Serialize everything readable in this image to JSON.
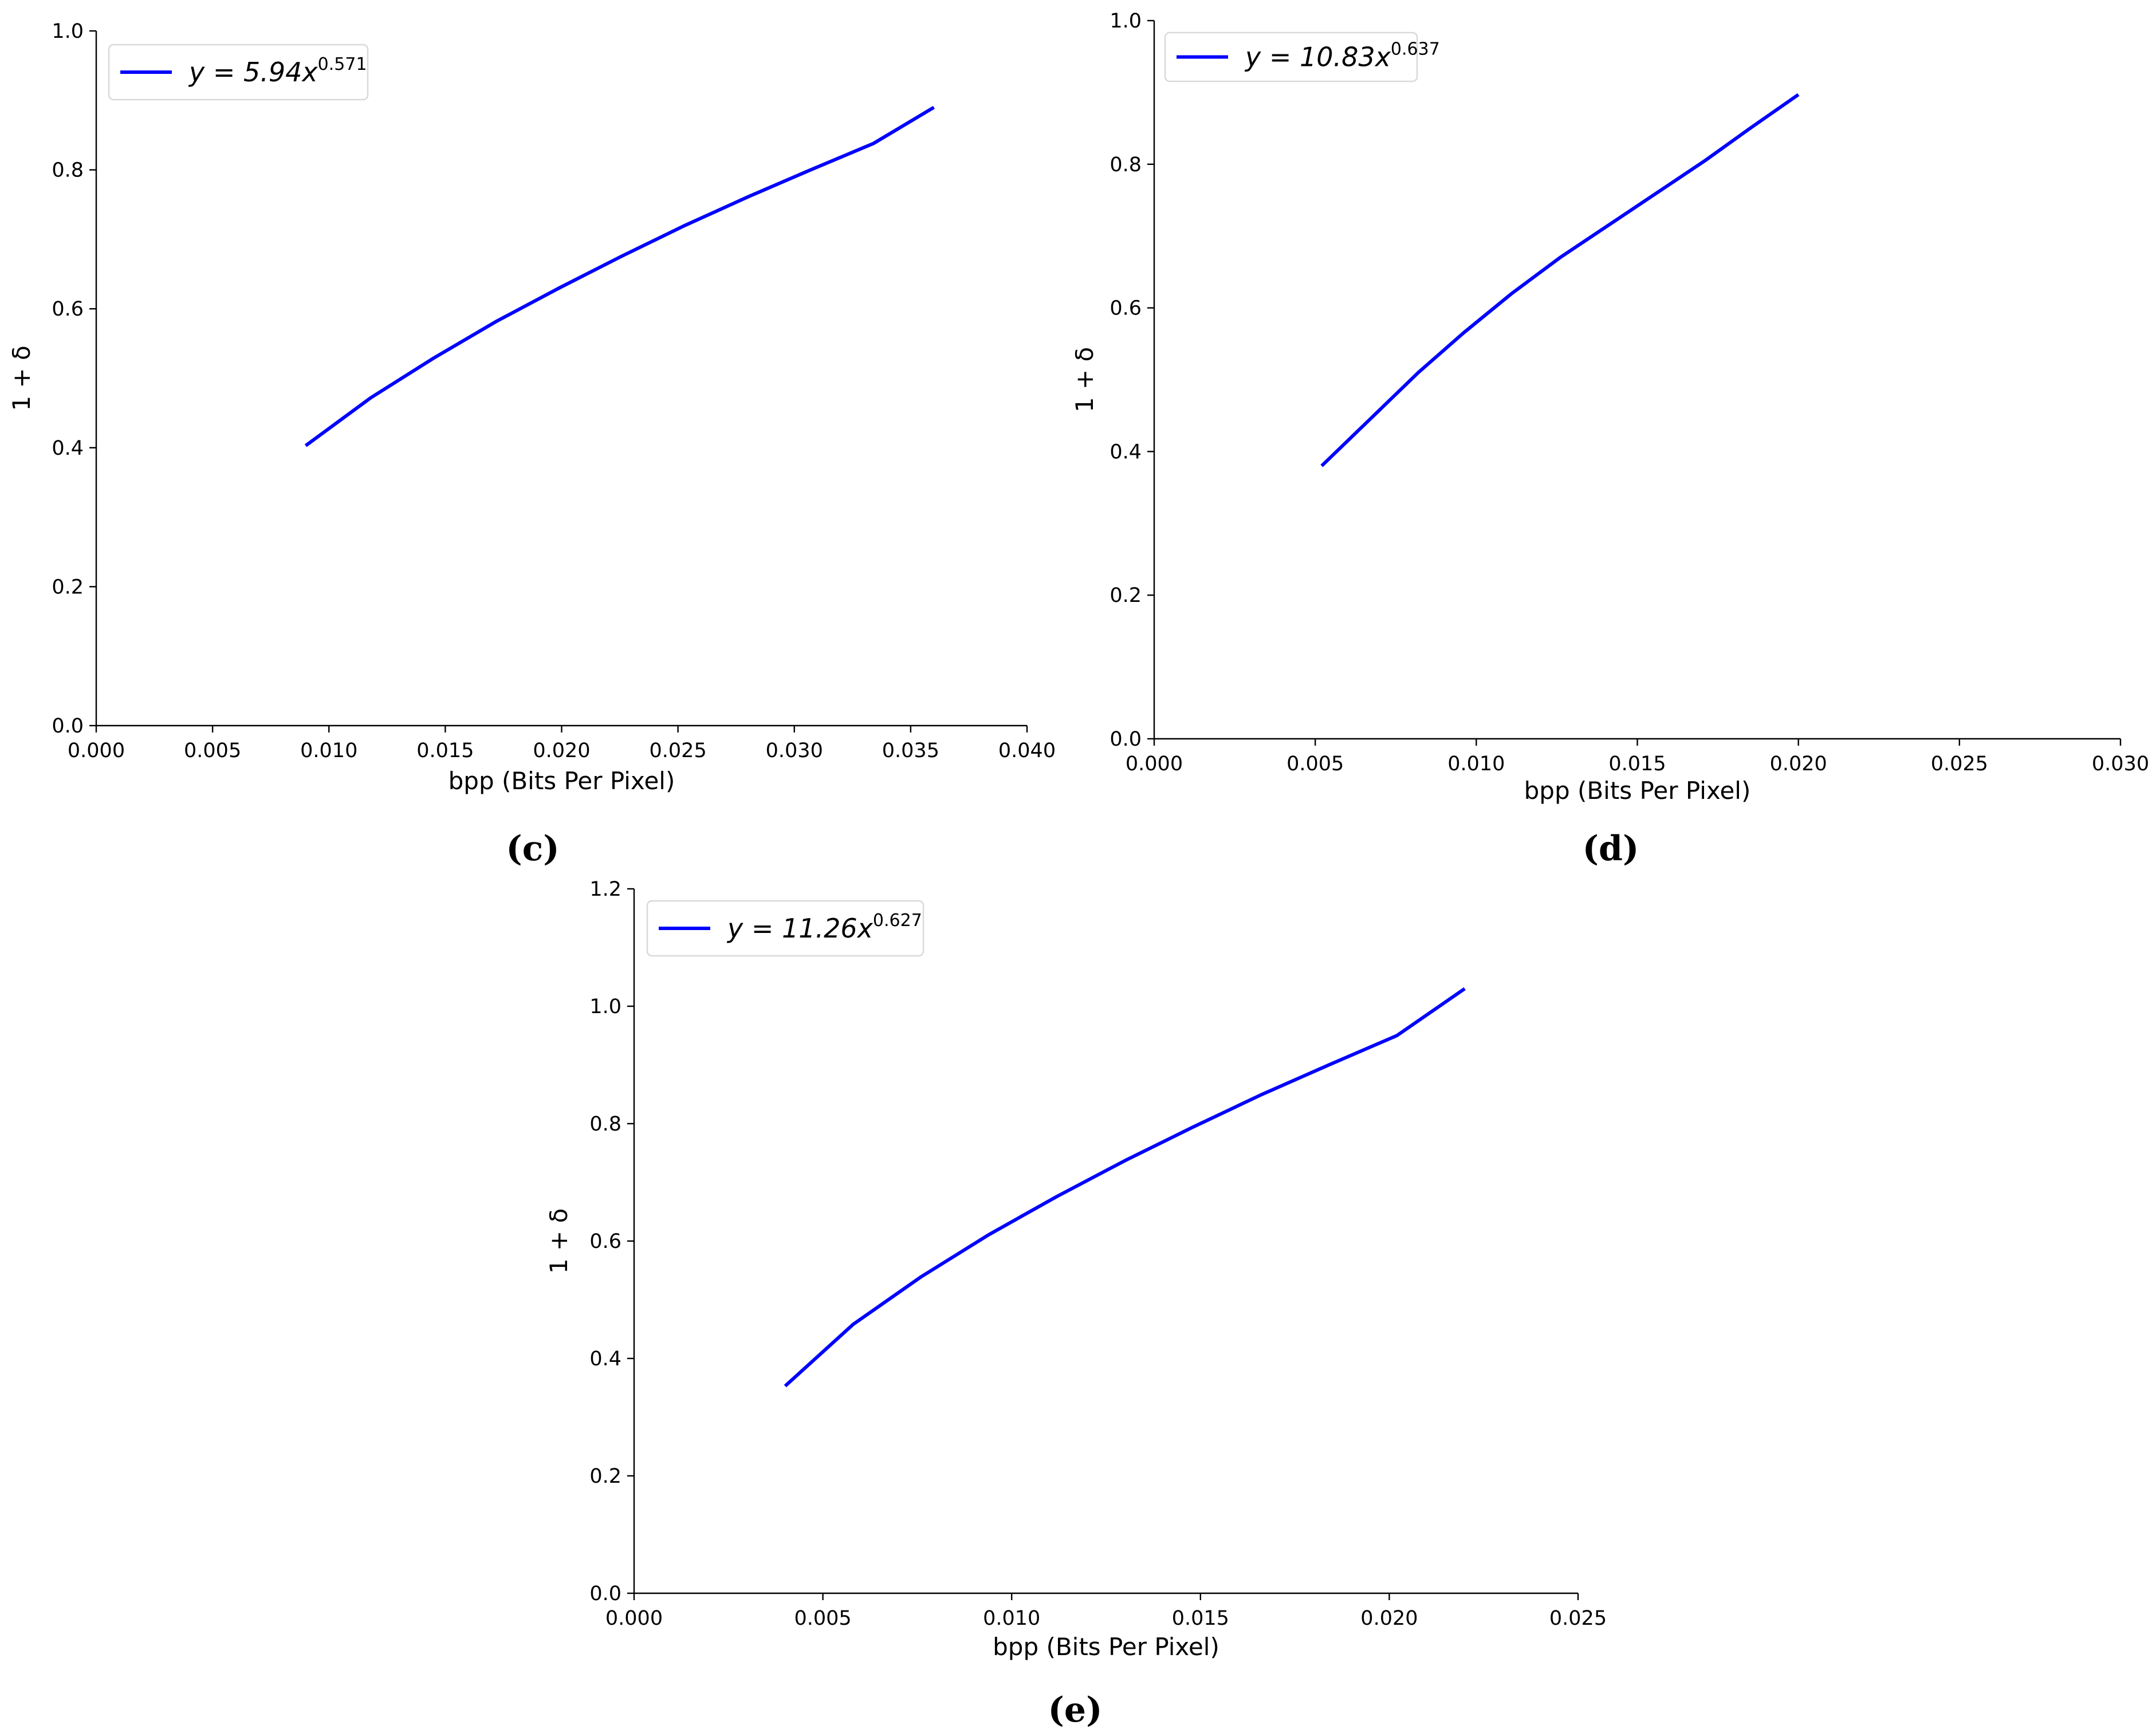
{
  "chart_data": [
    {
      "type": "line",
      "panel_label": "(c)",
      "xlabel": "bpp (Bits Per Pixel)",
      "ylabel": "1 + δ",
      "xlim": [
        0,
        0.04
      ],
      "ylim": [
        0,
        1.0
      ],
      "xticks": [
        0.0,
        0.005,
        0.01,
        0.015,
        0.02,
        0.025,
        0.03,
        0.035,
        0.04
      ],
      "xtick_labels": [
        "0.000",
        "0.005",
        "0.010",
        "0.015",
        "0.020",
        "0.025",
        "0.030",
        "0.035",
        "0.040"
      ],
      "yticks": [
        0.0,
        0.2,
        0.4,
        0.6,
        0.8,
        1.0
      ],
      "ytick_labels": [
        "0.0",
        "0.2",
        "0.4",
        "0.6",
        "0.8",
        "1.0"
      ],
      "grid": false,
      "legend_position": "top-left",
      "series": [
        {
          "legend": {
            "prefix": "y = 5.94x",
            "exponent": "0.571"
          },
          "color": "#0000ff",
          "x": [
            0.009,
            0.0118,
            0.0145,
            0.0172,
            0.0199,
            0.0226,
            0.0253,
            0.028,
            0.0307,
            0.0334,
            0.036
          ],
          "y": [
            0.403,
            0.472,
            0.529,
            0.582,
            0.63,
            0.676,
            0.72,
            0.761,
            0.8,
            0.838,
            0.89
          ]
        }
      ]
    },
    {
      "type": "line",
      "panel_label": "(d)",
      "xlabel": "bpp (Bits Per Pixel)",
      "ylabel": "1 + δ",
      "xlim": [
        0,
        0.03
      ],
      "ylim": [
        0,
        1.0
      ],
      "xticks": [
        0.0,
        0.005,
        0.01,
        0.015,
        0.02,
        0.025,
        0.03
      ],
      "xtick_labels": [
        "0.000",
        "0.005",
        "0.010",
        "0.015",
        "0.020",
        "0.025",
        "0.030"
      ],
      "yticks": [
        0.0,
        0.2,
        0.4,
        0.6,
        0.8,
        1.0
      ],
      "ytick_labels": [
        "0.0",
        "0.2",
        "0.4",
        "0.6",
        "0.8",
        "1.0"
      ],
      "grid": false,
      "legend_position": "top-left",
      "series": [
        {
          "legend": {
            "prefix": "y = 10.83x",
            "exponent": "0.637"
          },
          "color": "#0000ff",
          "x": [
            0.0052,
            0.0067,
            0.0082,
            0.0096,
            0.0111,
            0.0126,
            0.0141,
            0.0156,
            0.0171,
            0.0185,
            0.02
          ],
          "y": [
            0.38,
            0.445,
            0.51,
            0.565,
            0.62,
            0.67,
            0.715,
            0.76,
            0.805,
            0.85,
            0.897
          ]
        }
      ]
    },
    {
      "type": "line",
      "panel_label": "(e)",
      "xlabel": "bpp (Bits Per Pixel)",
      "ylabel": "1 + δ",
      "xlim": [
        0,
        0.025
      ],
      "ylim": [
        0,
        1.2
      ],
      "xticks": [
        0.0,
        0.005,
        0.01,
        0.015,
        0.02,
        0.025
      ],
      "xtick_labels": [
        "0.000",
        "0.005",
        "0.010",
        "0.015",
        "0.020",
        "0.025"
      ],
      "yticks": [
        0.0,
        0.2,
        0.4,
        0.6,
        0.8,
        1.0,
        1.2
      ],
      "ytick_labels": [
        "0.0",
        "0.2",
        "0.4",
        "0.6",
        "0.8",
        "1.0",
        "1.2"
      ],
      "grid": false,
      "legend_position": "top-left",
      "series": [
        {
          "legend": {
            "prefix": "y = 11.26x",
            "exponent": "0.627"
          },
          "color": "#0000ff",
          "x": [
            0.004,
            0.0058,
            0.0076,
            0.0094,
            0.0112,
            0.013,
            0.0148,
            0.0166,
            0.0184,
            0.0202,
            0.022
          ],
          "y": [
            0.353,
            0.458,
            0.539,
            0.611,
            0.676,
            0.737,
            0.794,
            0.849,
            0.9,
            0.95,
            1.03
          ]
        }
      ]
    }
  ]
}
